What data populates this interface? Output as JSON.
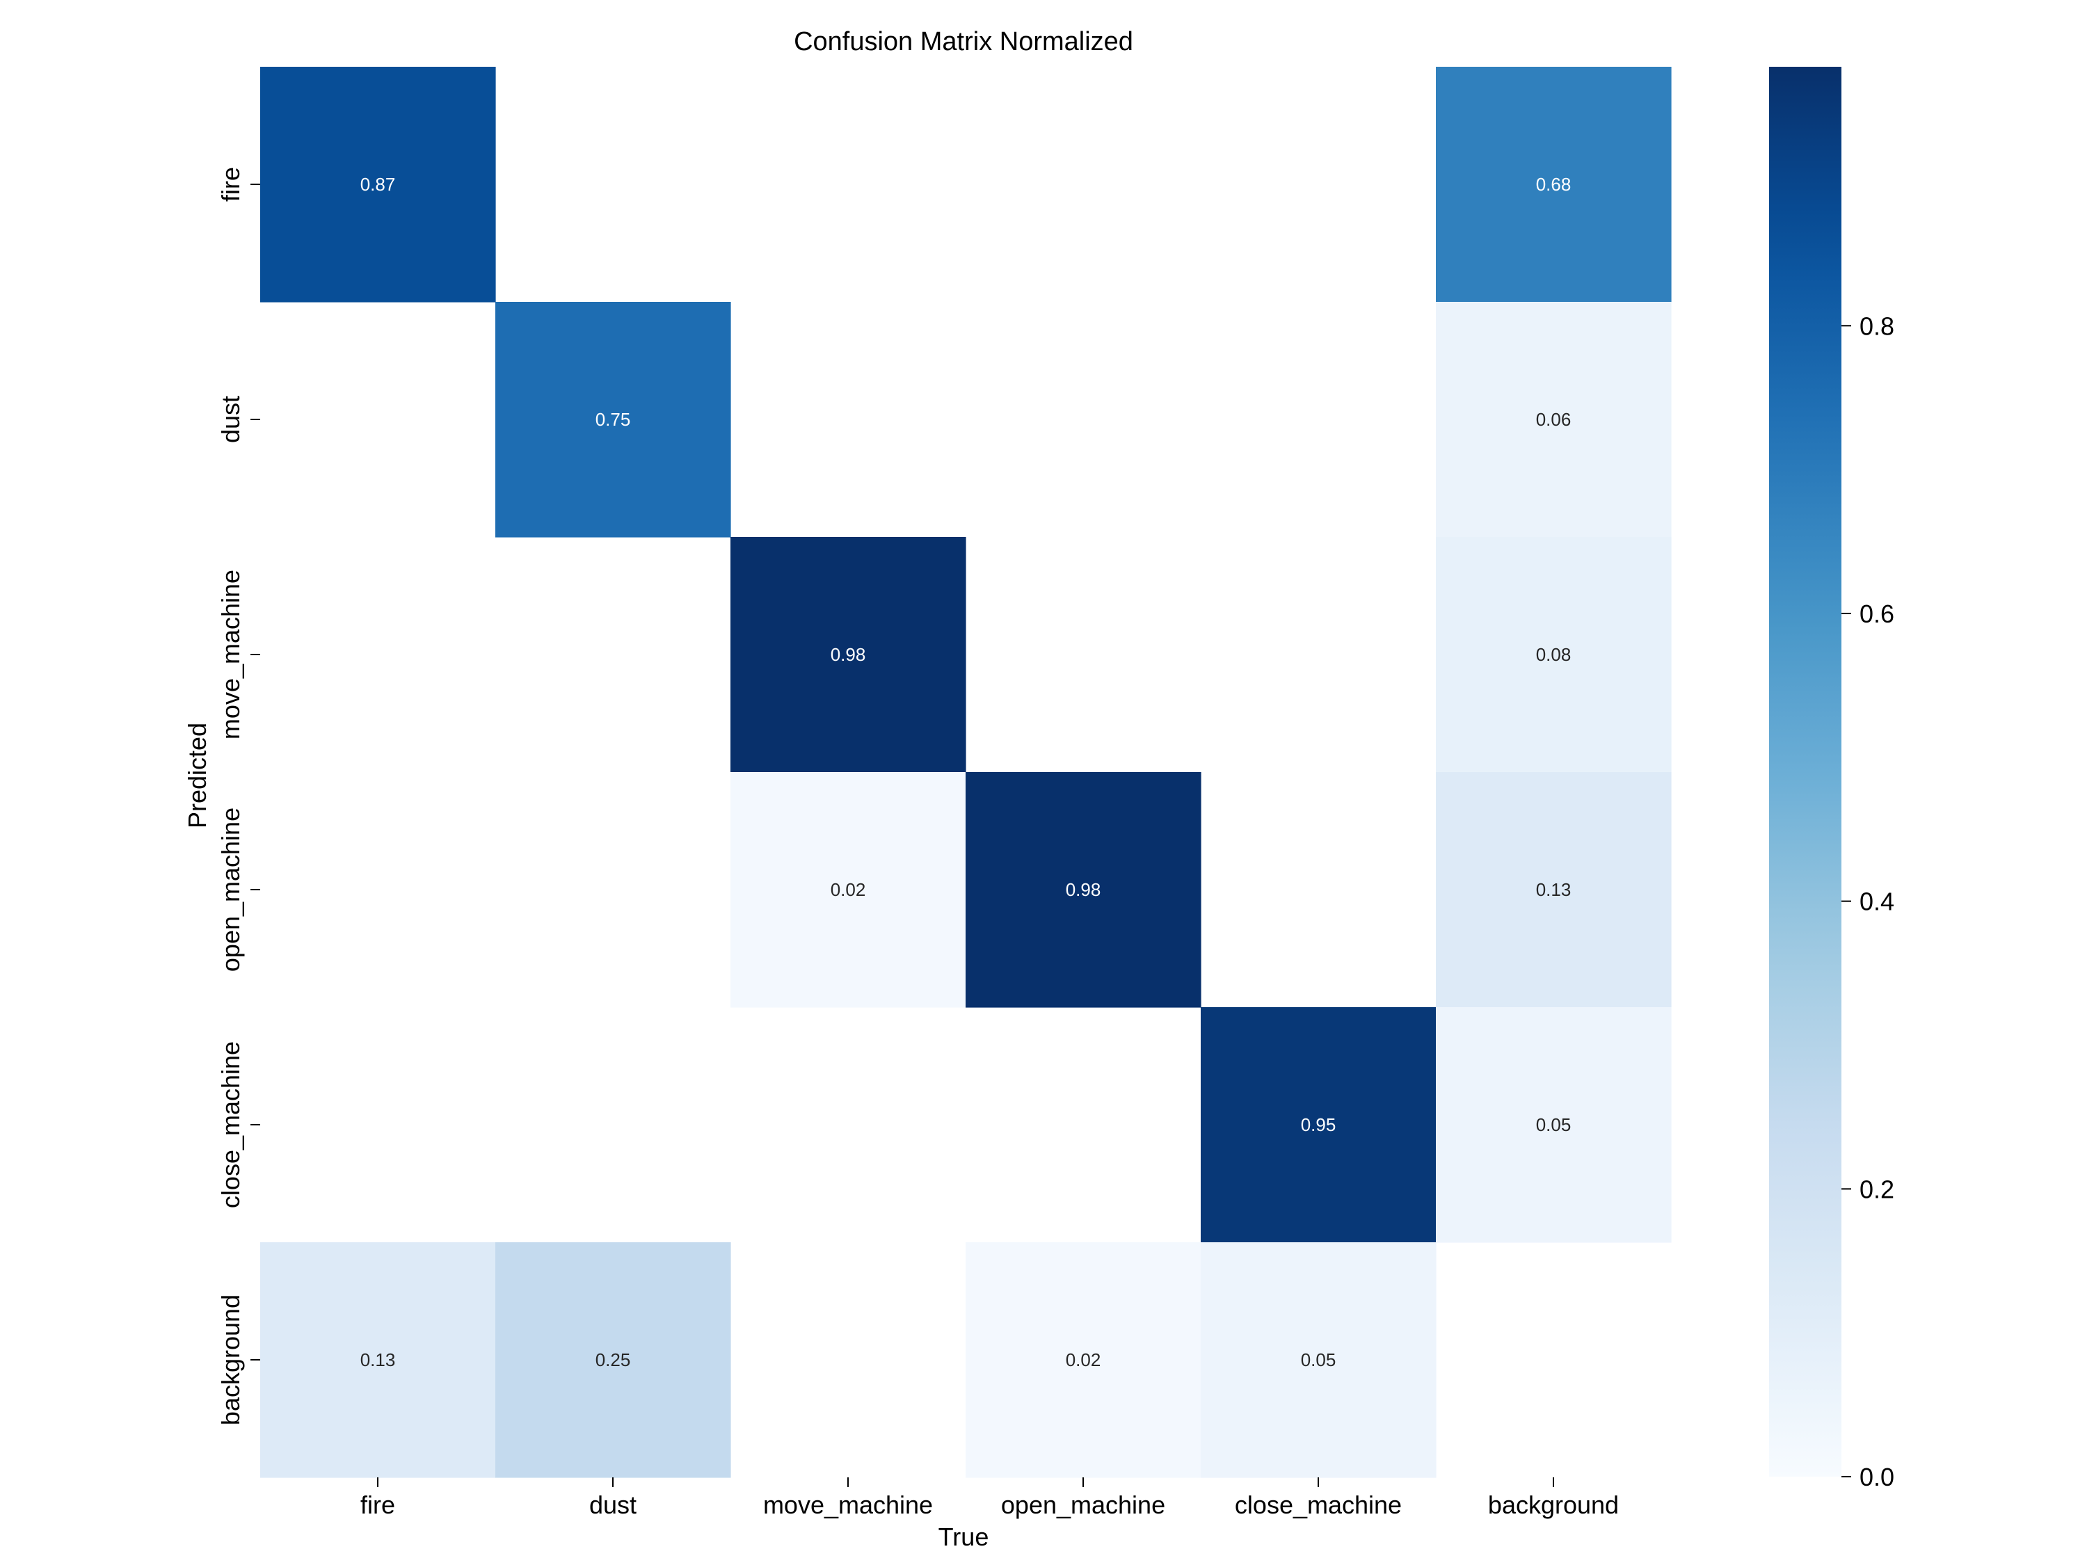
{
  "chart_data": {
    "type": "heatmap",
    "title": "Confusion Matrix Normalized",
    "xlabel": "True",
    "ylabel": "Predicted",
    "x_categories": [
      "fire",
      "dust",
      "move_machine",
      "open_machine",
      "close_machine",
      "background"
    ],
    "y_categories": [
      "fire",
      "dust",
      "move_machine",
      "open_machine",
      "close_machine",
      "background"
    ],
    "values": [
      [
        0.87,
        null,
        null,
        null,
        null,
        0.68
      ],
      [
        null,
        0.75,
        null,
        null,
        null,
        0.06
      ],
      [
        null,
        null,
        0.98,
        null,
        null,
        0.08
      ],
      [
        null,
        null,
        0.02,
        0.98,
        null,
        0.13
      ],
      [
        null,
        null,
        null,
        null,
        0.95,
        0.05
      ],
      [
        0.13,
        0.25,
        null,
        0.02,
        0.05,
        null
      ]
    ],
    "colorbar": {
      "range": [
        0.0,
        0.98
      ],
      "ticks": [
        0.0,
        0.2,
        0.4,
        0.6,
        0.8
      ],
      "tick_labels": [
        "0.0",
        "0.2",
        "0.4",
        "0.6",
        "0.8"
      ],
      "colormap": "Blues"
    },
    "colors": {
      "low": "#f7fbff",
      "high": "#08306b",
      "text_dark": "#262626",
      "text_light": "#ffffff"
    },
    "grid": false
  }
}
